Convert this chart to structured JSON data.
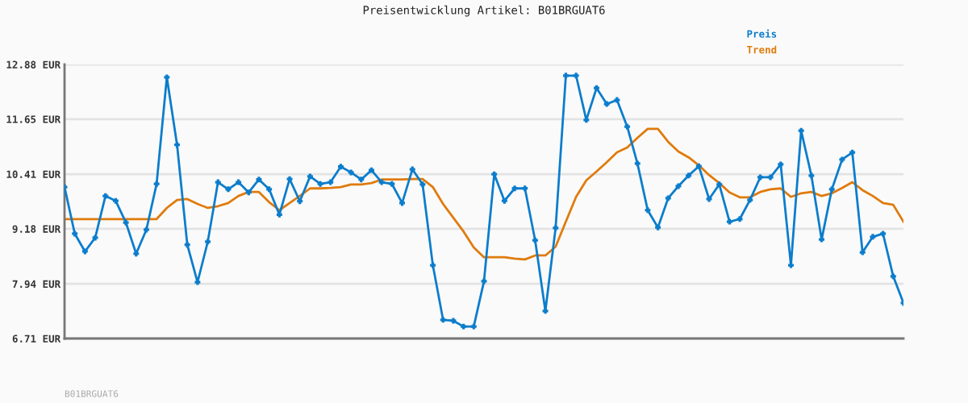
{
  "chart_data": {
    "type": "line",
    "title": "Preisentwicklung Artikel: B01BRGUAT6",
    "categories": [
      null,
      null,
      null,
      null,
      null,
      null,
      null,
      null,
      null,
      null,
      null,
      null,
      null,
      null,
      null,
      null,
      null,
      null,
      null,
      null,
      null,
      null,
      null,
      null,
      null,
      null,
      null,
      null,
      null,
      null,
      null,
      null,
      null,
      null,
      null,
      null,
      null,
      null,
      null,
      null,
      null,
      null,
      null,
      null,
      null,
      null,
      null,
      null,
      null,
      null,
      null,
      null,
      null,
      null,
      null,
      null,
      null,
      null,
      null,
      null,
      null,
      null,
      null,
      null,
      null,
      null,
      null,
      null,
      null,
      null,
      null,
      null,
      null,
      null,
      null,
      null,
      null,
      null,
      null,
      null,
      null,
      null,
      null
    ],
    "series": [
      {
        "name": "Preis",
        "color": "#0b7dcc",
        "marker": "cross",
        "values": [
          10.12,
          9.07,
          8.67,
          8.98,
          9.92,
          9.81,
          9.32,
          8.62,
          9.16,
          10.19,
          12.59,
          11.07,
          8.82,
          7.98,
          8.89,
          10.23,
          10.07,
          10.23,
          10.0,
          10.29,
          10.07,
          9.5,
          10.3,
          9.8,
          10.36,
          10.19,
          10.23,
          10.58,
          10.45,
          10.29,
          10.5,
          10.23,
          10.19,
          9.76,
          10.52,
          10.18,
          8.36,
          7.13,
          7.11,
          6.98,
          6.98,
          8.0,
          10.41,
          9.81,
          10.09,
          10.09,
          8.92,
          7.33,
          9.2,
          12.63,
          12.63,
          11.63,
          12.35,
          11.99,
          12.08,
          11.48,
          10.65,
          9.6,
          9.21,
          9.87,
          10.14,
          10.38,
          10.59,
          9.85,
          10.18,
          9.34,
          9.4,
          9.83,
          10.34,
          10.34,
          10.63,
          8.36,
          11.39,
          10.38,
          8.94,
          10.07,
          10.74,
          10.9,
          8.65,
          9.0,
          9.07,
          8.11,
          7.51
        ]
      },
      {
        "name": "Trend",
        "color": "#e07b0c",
        "marker": "none",
        "values": [
          9.4,
          9.4,
          9.4,
          9.4,
          9.4,
          9.4,
          9.4,
          9.4,
          9.4,
          9.4,
          9.65,
          9.83,
          9.85,
          9.74,
          9.65,
          9.69,
          9.76,
          9.92,
          10.01,
          10.01,
          9.78,
          9.6,
          9.76,
          9.92,
          10.09,
          10.09,
          10.1,
          10.12,
          10.18,
          10.18,
          10.21,
          10.29,
          10.29,
          10.29,
          10.3,
          10.3,
          10.12,
          9.74,
          9.43,
          9.12,
          8.76,
          8.54,
          8.54,
          8.54,
          8.51,
          8.49,
          8.58,
          8.58,
          8.78,
          9.34,
          9.9,
          10.27,
          10.47,
          10.68,
          10.9,
          11.01,
          11.23,
          11.43,
          11.43,
          11.14,
          10.92,
          10.79,
          10.61,
          10.39,
          10.21,
          10.0,
          9.89,
          9.89,
          10.01,
          10.07,
          10.09,
          9.9,
          9.98,
          10.01,
          9.92,
          9.98,
          10.1,
          10.23,
          10.05,
          9.92,
          9.76,
          9.72,
          9.34
        ]
      }
    ],
    "ylim": [
      6.71,
      12.88
    ],
    "yticks": [
      {
        "value": 6.71,
        "label": "6.71 EUR"
      },
      {
        "value": 7.94,
        "label": "7.94 EUR"
      },
      {
        "value": 9.18,
        "label": "9.18 EUR"
      },
      {
        "value": 10.41,
        "label": "10.41 EUR"
      },
      {
        "value": 11.65,
        "label": "11.65 EUR"
      },
      {
        "value": 12.88,
        "label": "12.88 EUR"
      }
    ],
    "grid": "y",
    "legend": "top right",
    "line_style": "solid",
    "annotations": [
      "B01BRGUAT6"
    ]
  }
}
